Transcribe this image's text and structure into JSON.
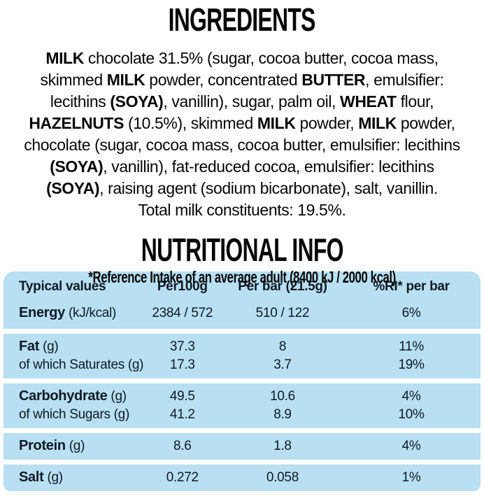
{
  "ingredients": {
    "title": "INGREDIENTS",
    "lines": [
      [
        {
          "t": "MILK",
          "b": 1
        },
        {
          "t": " chocolate 31.5% (sugar, cocoa butter, cocoa mass,"
        }
      ],
      [
        {
          "t": "skimmed "
        },
        {
          "t": "MILK",
          "b": 1
        },
        {
          "t": " powder, concentrated "
        },
        {
          "t": "BUTTER",
          "b": 1
        },
        {
          "t": ", emulsifier:"
        }
      ],
      [
        {
          "t": "lecithins "
        },
        {
          "t": "(SOYA)",
          "b": 1
        },
        {
          "t": ", vanillin), sugar, palm oil, "
        },
        {
          "t": "WHEAT",
          "b": 1
        },
        {
          "t": " flour,"
        }
      ],
      [
        {
          "t": "HAZELNUTS",
          "b": 1
        },
        {
          "t": " (10.5%), skimmed "
        },
        {
          "t": "MILK",
          "b": 1
        },
        {
          "t": " powder, "
        },
        {
          "t": "MILK",
          "b": 1
        },
        {
          "t": " powder,"
        }
      ],
      [
        {
          "t": "chocolate (sugar, cocoa mass, cocoa butter, emulsifier: lecithins"
        }
      ],
      [
        {
          "t": "(SOYA)",
          "b": 1
        },
        {
          "t": ", vanillin), fat-reduced cocoa, emulsifier: lecithins"
        }
      ],
      [
        {
          "t": "(SOYA)",
          "b": 1
        },
        {
          "t": ", raising agent (sodium bicarbonate), salt, vanillin."
        }
      ],
      [
        {
          "t": "Total milk constituents: 19.5%."
        }
      ]
    ]
  },
  "nutrition": {
    "title": "NUTRITIONAL INFO",
    "headers": [
      "Typical values",
      "Per100g",
      "Per bar (21.5g)",
      "%RI* per bar"
    ],
    "groups": [
      {
        "rows": [
          {
            "label_bold": "Energy",
            "label_rest": " (kJ/kcal)",
            "per_100g": "2384 / 572",
            "per_bar": "510 / 122",
            "ri_per_bar": "6%"
          }
        ]
      },
      {
        "rows": [
          {
            "label_bold": "Fat",
            "label_rest": " (g)",
            "per_100g": "37.3",
            "per_bar": "8",
            "ri_per_bar": "11%"
          },
          {
            "label_bold": "",
            "label_rest": "of which Saturates (g)",
            "per_100g": "17.3",
            "per_bar": "3.7",
            "ri_per_bar": "19%"
          }
        ]
      },
      {
        "rows": [
          {
            "label_bold": "Carbohydrate",
            "label_rest": " (g)",
            "per_100g": "49.5",
            "per_bar": "10.6",
            "ri_per_bar": "4%"
          },
          {
            "label_bold": "",
            "label_rest": "of which Sugars (g)",
            "per_100g": "41.2",
            "per_bar": "8.9",
            "ri_per_bar": "10%"
          }
        ]
      },
      {
        "rows": [
          {
            "label_bold": "Protein",
            "label_rest": " (g)",
            "per_100g": "8.6",
            "per_bar": "1.8",
            "ri_per_bar": "4%"
          }
        ]
      },
      {
        "rows": [
          {
            "label_bold": "Salt",
            "label_rest": " (g)",
            "per_100g": "0.272",
            "per_bar": "0.058",
            "ri_per_bar": "1%"
          }
        ]
      }
    ],
    "footnote": "*Reference Intake of an average adult (8400 kJ / 2000 kcal)",
    "colors": {
      "table_bg": "#b8dff2",
      "table_text": "#0e1a24",
      "body_text": "#060606",
      "page_bg": "#ffffff"
    }
  },
  "chart_data": {
    "type": "table",
    "title": "NUTRITIONAL INFO",
    "columns": [
      "Typical values",
      "Per100g",
      "Per bar (21.5g)",
      "%RI* per bar"
    ],
    "rows": [
      [
        "Energy (kJ/kcal)",
        "2384 / 572",
        "510 / 122",
        "6%"
      ],
      [
        "Fat (g)",
        "37.3",
        "8",
        "11%"
      ],
      [
        "of which Saturates (g)",
        "17.3",
        "3.7",
        "19%"
      ],
      [
        "Carbohydrate (g)",
        "49.5",
        "10.6",
        "4%"
      ],
      [
        "of which Sugars (g)",
        "41.2",
        "8.9",
        "10%"
      ],
      [
        "Protein (g)",
        "8.6",
        "1.8",
        "4%"
      ],
      [
        "Salt (g)",
        "0.272",
        "0.058",
        "1%"
      ]
    ],
    "footnote": "*Reference Intake of an average adult (8400 kJ / 2000 kcal)"
  }
}
